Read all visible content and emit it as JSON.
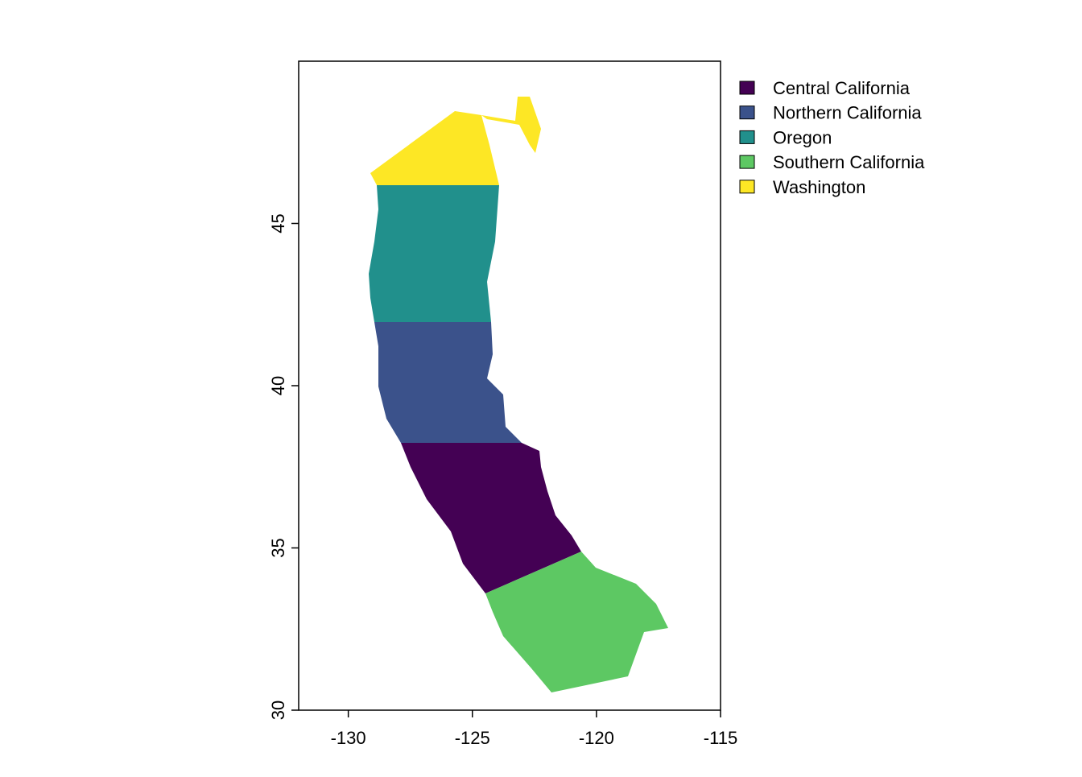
{
  "chart_data": {
    "type": "map",
    "xlim": [
      -132,
      -115
    ],
    "xticks": [
      -130,
      -125,
      -120,
      -115
    ],
    "ylim": [
      30,
      50
    ],
    "yticks": [
      30,
      35,
      40,
      45
    ],
    "series": [
      {
        "name": "Central California",
        "color": "#440154"
      },
      {
        "name": "Northern California",
        "color": "#3b528b"
      },
      {
        "name": "Oregon",
        "color": "#21908c"
      },
      {
        "name": "Southern California",
        "color": "#5dc863"
      },
      {
        "name": "Washington",
        "color": "#fde725"
      }
    ]
  }
}
